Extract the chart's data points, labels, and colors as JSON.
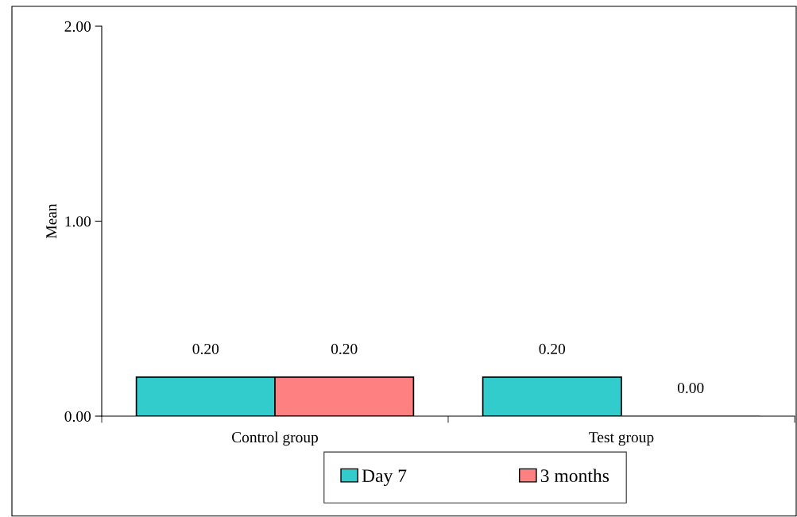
{
  "chart_data": {
    "type": "bar",
    "ylabel": "Mean",
    "categories": [
      "Control group",
      "Test group"
    ],
    "series": [
      {
        "name": "Day 7",
        "color": "#33cccc",
        "values": [
          0.2,
          0.2
        ],
        "value_labels": [
          "0.20",
          "0.20"
        ]
      },
      {
        "name": "3 months",
        "color": "#ff8080",
        "values": [
          0.2,
          0.0
        ],
        "value_labels": [
          "0.20",
          "0.00"
        ]
      }
    ],
    "ylim": [
      0,
      2
    ],
    "yticks": [
      {
        "value": 0,
        "label": "0.00"
      },
      {
        "value": 1,
        "label": "1.00"
      },
      {
        "value": 2,
        "label": "2.00"
      }
    ],
    "grid": false,
    "legend": "bottom"
  }
}
